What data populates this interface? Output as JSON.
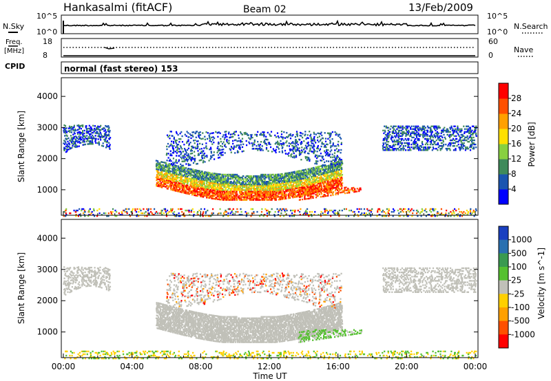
{
  "header": {
    "station": "Hankasalmi (fitACF)",
    "beam": "Beam 02",
    "date": "13/Feb/2009"
  },
  "top_panels": {
    "nsky_label": "N.Sky",
    "nsky_ticks": [
      "10^5",
      "10^0"
    ],
    "nsearch_label": "N.Search",
    "freq_label_1": "Freq.",
    "freq_label_2": "[MHz]",
    "freq_ticks": [
      "18",
      "8"
    ],
    "nave_label": "Nave",
    "nave_ticks": [
      "60",
      "0"
    ],
    "cpid_label": "CPID",
    "cpid_text": "normal (fast stereo) 153"
  },
  "chart_data": [
    {
      "type": "heatmap",
      "panel": "power",
      "ylabel": "Slant Range [km]",
      "ylim": [
        180,
        4600
      ],
      "yticks": [
        "1000",
        "2000",
        "3000",
        "4000"
      ],
      "colorbar_label": "Power [dB]",
      "colorbar_ticks": [
        "4",
        "8",
        "12",
        "16",
        "20",
        "24",
        "28"
      ],
      "colorbar_colors": [
        "#0000ff",
        "#1a55b0",
        "#3f8a5a",
        "#88d040",
        "#ffe000",
        "#ffa000",
        "#ff5000",
        "#ff0000"
      ]
    },
    {
      "type": "heatmap",
      "panel": "velocity",
      "ylabel": "Slant Range [km]",
      "ylim": [
        180,
        4600
      ],
      "yticks": [
        "1000",
        "2000",
        "3000",
        "4000"
      ],
      "colorbar_label": "Velocity [m s^-1]",
      "colorbar_ticks": [
        "1000",
        "500",
        "100",
        "25",
        "-25",
        "-100",
        "-500",
        "-1000"
      ],
      "colorbar_colors": [
        "#1a40c0",
        "#2a70b0",
        "#3a9a50",
        "#55c030",
        "#c0c0b8",
        "#ffd000",
        "#ffa000",
        "#ff5000",
        "#ff0000"
      ]
    }
  ],
  "x_axis": {
    "label": "Time UT",
    "ticks": [
      "00:00",
      "04:00",
      "08:00",
      "12:00",
      "16:00",
      "20:00",
      "00:00"
    ]
  }
}
